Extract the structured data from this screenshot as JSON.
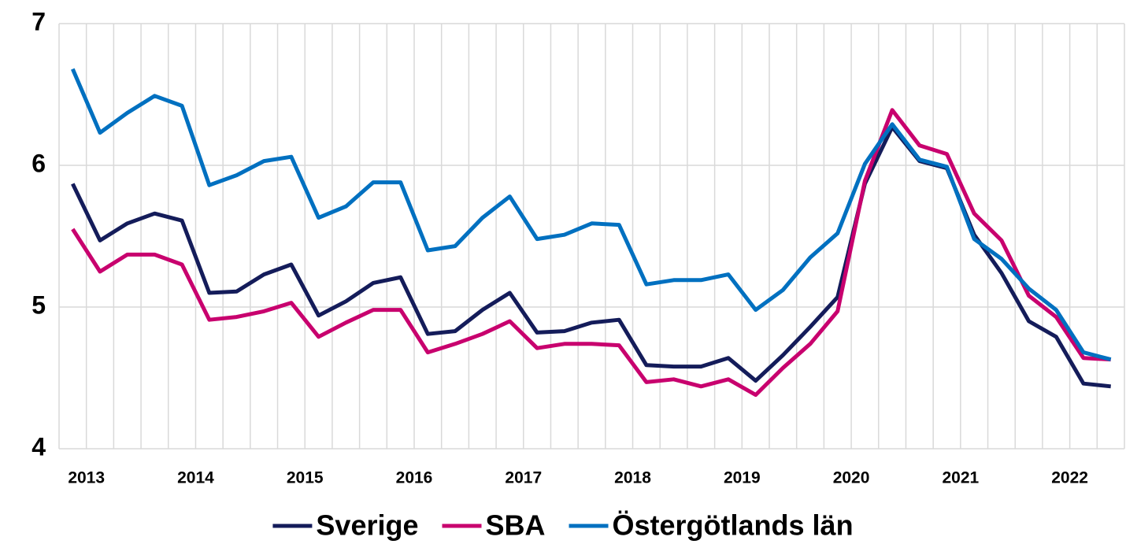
{
  "chart_data": {
    "type": "line",
    "categories": [
      "2013",
      null,
      null,
      null,
      "2014",
      null,
      null,
      null,
      "2015",
      null,
      null,
      null,
      "2016",
      null,
      null,
      null,
      "2017",
      null,
      null,
      null,
      "2018",
      null,
      null,
      null,
      "2019",
      null,
      null,
      null,
      "2020",
      null,
      null,
      null,
      "2021",
      null,
      null,
      null,
      "2022",
      null,
      null
    ],
    "series": [
      {
        "name": "Sverige",
        "color": "#141c5a",
        "values": [
          5.87,
          5.47,
          5.59,
          5.66,
          5.61,
          5.1,
          5.11,
          5.23,
          5.3,
          4.94,
          5.04,
          5.17,
          5.21,
          4.81,
          4.83,
          4.98,
          5.1,
          4.82,
          4.83,
          4.89,
          4.91,
          4.59,
          4.58,
          4.58,
          4.64,
          4.48,
          4.66,
          4.86,
          5.07,
          5.87,
          6.27,
          6.03,
          5.98,
          5.51,
          5.24,
          4.9,
          4.79,
          4.46,
          4.44
        ]
      },
      {
        "name": "SBA",
        "color": "#c8006e",
        "values": [
          5.55,
          5.25,
          5.37,
          5.37,
          5.3,
          4.91,
          4.93,
          4.97,
          5.03,
          4.79,
          4.89,
          4.98,
          4.98,
          4.68,
          4.74,
          4.81,
          4.9,
          4.71,
          4.74,
          4.74,
          4.73,
          4.47,
          4.49,
          4.44,
          4.49,
          4.38,
          4.57,
          4.74,
          4.97,
          5.89,
          6.39,
          6.14,
          6.08,
          5.66,
          5.47,
          5.08,
          4.93,
          4.64,
          4.63
        ]
      },
      {
        "name": "Östergötlands län",
        "color": "#0070c0",
        "values": [
          6.68,
          6.23,
          6.37,
          6.49,
          6.42,
          5.86,
          5.93,
          6.03,
          6.06,
          5.63,
          5.71,
          5.88,
          5.88,
          5.4,
          5.43,
          5.63,
          5.78,
          5.48,
          5.51,
          5.59,
          5.58,
          5.16,
          5.19,
          5.19,
          5.23,
          4.98,
          5.12,
          5.35,
          5.52,
          6.01,
          6.29,
          6.04,
          5.99,
          5.48,
          5.34,
          5.13,
          4.98,
          4.68,
          4.63
        ]
      }
    ],
    "ylim": [
      4,
      7
    ],
    "yticks": [
      4,
      5,
      6,
      7
    ],
    "grid": true,
    "legend": "bottom"
  }
}
